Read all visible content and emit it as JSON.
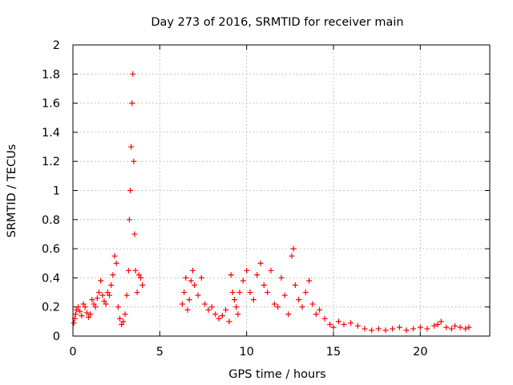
{
  "chart_data": {
    "type": "scatter",
    "title": "Day 273 of 2016, SRMTID for receiver main",
    "xlabel": "GPS time / hours",
    "ylabel": "SRMTID / TECUs",
    "xlim": [
      0,
      24
    ],
    "ylim": [
      0,
      2
    ],
    "xticks": [
      {
        "value": 0,
        "label": "0"
      },
      {
        "value": 5,
        "label": "5"
      },
      {
        "value": 10,
        "label": "10"
      },
      {
        "value": 15,
        "label": "15"
      },
      {
        "value": 20,
        "label": "20"
      }
    ],
    "yticks": [
      {
        "value": 0,
        "label": "0"
      },
      {
        "value": 0.2,
        "label": "0.2"
      },
      {
        "value": 0.4,
        "label": "0.4"
      },
      {
        "value": 0.6,
        "label": "0.6"
      },
      {
        "value": 0.8,
        "label": "0.8"
      },
      {
        "value": 1.0,
        "label": "1"
      },
      {
        "value": 1.2,
        "label": "1.2"
      },
      {
        "value": 1.4,
        "label": "1.4"
      },
      {
        "value": 1.6,
        "label": "1.6"
      },
      {
        "value": 1.8,
        "label": "1.8"
      },
      {
        "value": 2.0,
        "label": "2"
      }
    ],
    "grid": true,
    "marker": "+",
    "color": "#ff0000",
    "series": [
      {
        "name": "SRMTID",
        "x": [
          0.05,
          0.1,
          0.15,
          0.2,
          0.3,
          0.4,
          0.5,
          0.6,
          0.7,
          0.8,
          0.9,
          1.0,
          1.1,
          1.2,
          1.3,
          1.4,
          1.5,
          1.6,
          1.7,
          1.8,
          1.9,
          2.0,
          2.1,
          2.2,
          2.3,
          2.4,
          2.5,
          2.6,
          2.7,
          2.8,
          2.9,
          3.0,
          3.1,
          3.2,
          3.25,
          3.3,
          3.35,
          3.4,
          3.45,
          3.5,
          3.55,
          3.6,
          3.7,
          3.8,
          3.9,
          4.0,
          6.3,
          6.4,
          6.5,
          6.6,
          6.7,
          6.8,
          6.9,
          7.0,
          7.2,
          7.4,
          7.6,
          7.8,
          8.0,
          8.2,
          8.4,
          8.6,
          8.8,
          9.0,
          9.1,
          9.2,
          9.3,
          9.4,
          9.5,
          9.6,
          9.8,
          10.0,
          10.2,
          10.4,
          10.6,
          10.8,
          11.0,
          11.2,
          11.4,
          11.6,
          11.8,
          12.0,
          12.2,
          12.4,
          12.6,
          12.7,
          12.8,
          13.0,
          13.2,
          13.4,
          13.6,
          13.8,
          14.0,
          14.2,
          14.5,
          14.8,
          15.0,
          15.3,
          15.6,
          16.0,
          16.4,
          16.8,
          17.2,
          17.6,
          18.0,
          18.4,
          18.8,
          19.2,
          19.6,
          20.0,
          20.4,
          20.8,
          21.0,
          21.2,
          21.5,
          21.8,
          22.0,
          22.3,
          22.6,
          22.8
        ],
        "y": [
          0.09,
          0.12,
          0.15,
          0.18,
          0.2,
          0.17,
          0.14,
          0.22,
          0.2,
          0.16,
          0.13,
          0.15,
          0.25,
          0.22,
          0.2,
          0.26,
          0.3,
          0.38,
          0.28,
          0.24,
          0.22,
          0.3,
          0.28,
          0.35,
          0.42,
          0.55,
          0.5,
          0.2,
          0.12,
          0.08,
          0.1,
          0.15,
          0.28,
          0.45,
          0.8,
          1.0,
          1.3,
          1.6,
          1.8,
          1.2,
          0.7,
          0.45,
          0.3,
          0.42,
          0.4,
          0.35,
          0.22,
          0.3,
          0.4,
          0.18,
          0.25,
          0.38,
          0.45,
          0.35,
          0.28,
          0.4,
          0.22,
          0.18,
          0.2,
          0.15,
          0.12,
          0.14,
          0.18,
          0.1,
          0.42,
          0.3,
          0.25,
          0.2,
          0.15,
          0.3,
          0.38,
          0.45,
          0.3,
          0.25,
          0.42,
          0.5,
          0.35,
          0.3,
          0.45,
          0.22,
          0.2,
          0.4,
          0.28,
          0.15,
          0.55,
          0.6,
          0.35,
          0.25,
          0.2,
          0.3,
          0.38,
          0.22,
          0.15,
          0.18,
          0.12,
          0.08,
          0.06,
          0.1,
          0.08,
          0.09,
          0.07,
          0.05,
          0.04,
          0.05,
          0.04,
          0.05,
          0.06,
          0.04,
          0.05,
          0.06,
          0.05,
          0.07,
          0.08,
          0.1,
          0.06,
          0.05,
          0.07,
          0.06,
          0.05,
          0.06
        ]
      }
    ]
  }
}
